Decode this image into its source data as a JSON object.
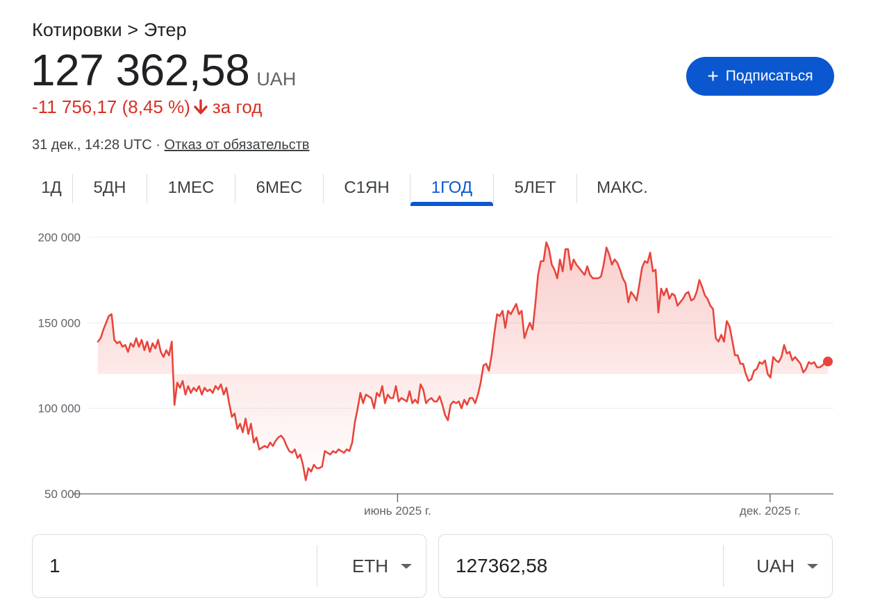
{
  "breadcrumb": "Котировки > Этер",
  "price": {
    "value": "127 362,58",
    "currency": "UAH",
    "change": "-11 756,17 (8,45 %)",
    "change_period": "за год"
  },
  "meta": {
    "timestamp": "31 дек., 14:28 UTC",
    "separator": "·",
    "disclaimer": "Отказ от обязательств"
  },
  "subscribe": {
    "plus": "+",
    "label": "Подписаться"
  },
  "tabs": [
    {
      "label": "1Д",
      "active": false
    },
    {
      "label": "5ДН",
      "active": false
    },
    {
      "label": "1МЕС",
      "active": false
    },
    {
      "label": "6МЕС",
      "active": false
    },
    {
      "label": "С1ЯН",
      "active": false
    },
    {
      "label": "1ГОД",
      "active": true
    },
    {
      "label": "5ЛЕТ",
      "active": false
    },
    {
      "label": "МАКС.",
      "active": false
    }
  ],
  "colors": {
    "line": "#e8453c",
    "accent": "#0b57d0",
    "negative": "#d93025"
  },
  "chart_data": {
    "type": "area",
    "ylim": [
      50000,
      200000
    ],
    "yticks": [
      200000,
      150000,
      100000,
      50000
    ],
    "ytick_labels": [
      "200 000",
      "150 000",
      "100 000",
      "50 000"
    ],
    "xlabels": [
      {
        "label": "июнь 2025 г.",
        "x": 0.4105
      },
      {
        "label": "дек. 2025 г.",
        "x": 0.9208
      }
    ],
    "grid": true,
    "values": [
      139000,
      141000,
      146000,
      150000,
      154000,
      155000,
      140000,
      138000,
      139000,
      136000,
      137000,
      133000,
      138000,
      136000,
      141000,
      136000,
      140000,
      134000,
      139000,
      133000,
      138000,
      135000,
      140000,
      133000,
      130000,
      134000,
      131000,
      139000,
      102000,
      115000,
      112000,
      116000,
      108000,
      113000,
      109000,
      112000,
      110000,
      113000,
      108000,
      112000,
      110000,
      111000,
      109000,
      113000,
      111000,
      114000,
      108000,
      112000,
      103000,
      95000,
      97000,
      88000,
      91000,
      86000,
      94000,
      85000,
      91000,
      80000,
      83000,
      76000,
      77000,
      78000,
      77000,
      80000,
      78000,
      81000,
      83000,
      84000,
      82000,
      78000,
      75000,
      74000,
      76000,
      71000,
      73000,
      67000,
      58000,
      65000,
      63000,
      67000,
      65000,
      65000,
      66000,
      75000,
      74000,
      73000,
      75000,
      74000,
      76000,
      75000,
      74000,
      76000,
      75000,
      80000,
      92000,
      100000,
      109000,
      103000,
      108000,
      107000,
      106000,
      100000,
      109000,
      107000,
      113000,
      103000,
      108000,
      106000,
      106000,
      113000,
      104000,
      106000,
      105000,
      104000,
      110000,
      103000,
      105000,
      103000,
      114000,
      111000,
      103000,
      105000,
      106000,
      104000,
      104000,
      107000,
      102000,
      96000,
      93000,
      102000,
      104000,
      103000,
      104000,
      100000,
      105000,
      102000,
      106000,
      106000,
      103000,
      108000,
      115000,
      125000,
      126000,
      122000,
      131000,
      144000,
      155000,
      154000,
      157000,
      147000,
      157000,
      155000,
      158000,
      161000,
      155000,
      157000,
      141000,
      146000,
      150000,
      146000,
      161000,
      178000,
      186000,
      186000,
      197000,
      193000,
      184000,
      181000,
      176000,
      187000,
      180000,
      193000,
      193000,
      181000,
      187000,
      184000,
      182000,
      180000,
      178000,
      183000,
      178000,
      176000,
      176000,
      176000,
      177000,
      184000,
      194000,
      190000,
      184000,
      187000,
      185000,
      181000,
      176000,
      173000,
      162000,
      168000,
      166000,
      163000,
      172000,
      182000,
      186000,
      185000,
      191000,
      180000,
      181000,
      156000,
      170000,
      166000,
      170000,
      164000,
      167000,
      166000,
      160000,
      162000,
      164000,
      167000,
      168000,
      163000,
      164000,
      168000,
      175000,
      171000,
      166000,
      164000,
      160000,
      158000,
      141000,
      139000,
      143000,
      139000,
      151000,
      148000,
      140000,
      131000,
      131000,
      126000,
      126000,
      120000,
      116000,
      117000,
      122000,
      123000,
      127000,
      126000,
      128000,
      120000,
      118000,
      130000,
      128000,
      127000,
      130000,
      137000,
      132000,
      133000,
      128000,
      130000,
      128000,
      126000,
      121000,
      123000,
      127000,
      126000,
      127000,
      124000,
      124000,
      125000,
      127000,
      127363
    ]
  },
  "converter": {
    "from": {
      "amount": "1",
      "unit": "ETH"
    },
    "to": {
      "amount": "127362,58",
      "unit": "UAH"
    }
  }
}
